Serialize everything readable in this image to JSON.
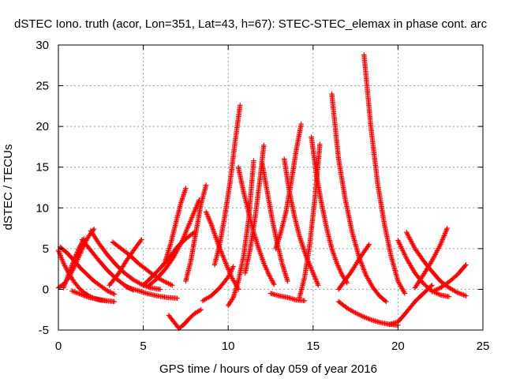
{
  "chart_data": {
    "type": "scatter",
    "title": "dSTEC Iono. truth (acor, Lon=351, Lat=43, h=67): STEC-STEC_elemax in phase cont. arc",
    "xlabel": "GPS time / hours of day 059 of year 2016",
    "ylabel": "dSTEC  / TECUs",
    "xlim": [
      0,
      25
    ],
    "ylim": [
      -5,
      30
    ],
    "xticks": [
      0,
      5,
      10,
      15,
      20,
      25
    ],
    "yticks": [
      -5,
      0,
      5,
      10,
      15,
      20,
      25,
      30
    ],
    "grid": true,
    "marker": "+",
    "color": "#ff0000",
    "series": [
      {
        "x": [
          0.0,
          0.3,
          0.6,
          0.9,
          1.2,
          1.5,
          1.8,
          2.1,
          2.4,
          2.8
        ],
        "y": [
          4.8,
          3.2,
          2.0,
          1.0,
          0.2,
          -0.4,
          -0.8,
          -1.1,
          -1.3,
          -1.4
        ]
      },
      {
        "x": [
          0.0,
          0.3,
          0.6,
          0.9,
          1.2,
          1.5,
          1.8,
          2.1
        ],
        "y": [
          0.2,
          0.6,
          1.4,
          2.6,
          4.0,
          5.4,
          6.6,
          7.4
        ]
      },
      {
        "x": [
          0.1,
          0.5,
          0.9,
          1.3,
          1.7,
          2.1,
          2.5,
          2.9,
          3.3
        ],
        "y": [
          5.2,
          4.5,
          3.6,
          2.6,
          1.8,
          1.0,
          0.4,
          -0.2,
          -0.6
        ]
      },
      {
        "x": [
          0.3,
          0.6,
          0.9,
          1.2,
          1.5
        ],
        "y": [
          0.2,
          1.8,
          3.5,
          5.0,
          6.2
        ]
      },
      {
        "x": [
          0.8,
          1.3,
          1.8,
          2.3,
          2.8,
          3.3
        ],
        "y": [
          -0.2,
          -0.6,
          -1.0,
          -1.2,
          -1.4,
          -1.5
        ]
      },
      {
        "x": [
          1.4,
          1.9,
          2.4,
          2.9,
          3.4,
          3.9,
          4.4
        ],
        "y": [
          6.1,
          4.8,
          3.5,
          2.3,
          1.3,
          0.5,
          -0.1
        ]
      },
      {
        "x": [
          1.9,
          2.4,
          2.9,
          3.4,
          3.9,
          4.4,
          4.9,
          5.4,
          6.0
        ],
        "y": [
          7.2,
          5.6,
          4.2,
          3.0,
          2.0,
          1.2,
          0.6,
          0.2,
          0.0
        ]
      },
      {
        "x": [
          3.2,
          3.7,
          4.2,
          4.7,
          5.2,
          5.7,
          6.2,
          6.7
        ],
        "y": [
          5.8,
          5.0,
          4.2,
          3.2,
          2.4,
          1.6,
          1.0,
          0.5
        ]
      },
      {
        "x": [
          3.0,
          3.5,
          4.0,
          4.5,
          4.9
        ],
        "y": [
          0.5,
          1.8,
          3.5,
          5.0,
          6.1
        ]
      },
      {
        "x": [
          5.0,
          5.5,
          6.0,
          6.5,
          7.0,
          7.5,
          8.0
        ],
        "y": [
          0.5,
          1.5,
          2.6,
          3.8,
          5.2,
          6.2,
          7.0
        ]
      },
      {
        "x": [
          4.0,
          4.6,
          5.2,
          5.8,
          6.4,
          7.0
        ],
        "y": [
          0.3,
          -0.1,
          -0.5,
          -0.8,
          -1.0,
          -1.1
        ]
      },
      {
        "x": [
          5.3,
          5.8,
          6.3,
          6.8,
          7.3,
          7.8,
          8.3
        ],
        "y": [
          0.4,
          1.3,
          2.5,
          4.0,
          6.0,
          8.5,
          11.0
        ]
      },
      {
        "x": [
          6.3,
          6.6,
          6.9,
          7.2,
          7.5
        ],
        "y": [
          3.5,
          5.5,
          8.0,
          10.5,
          12.4
        ]
      },
      {
        "x": [
          6.5,
          6.8,
          7.1,
          7.4,
          7.7,
          8.0,
          8.4
        ],
        "y": [
          -3.2,
          -4.0,
          -4.8,
          -4.3,
          -3.6,
          -3.0,
          -2.5
        ]
      },
      {
        "x": [
          7.5,
          7.8,
          8.1,
          8.4,
          8.7
        ],
        "y": [
          1.0,
          3.5,
          7.0,
          10.5,
          12.8
        ]
      },
      {
        "x": [
          8.5,
          9.0,
          9.5,
          10.0,
          10.3
        ],
        "y": [
          -1.4,
          -0.8,
          0.2,
          1.5,
          2.8
        ]
      },
      {
        "x": [
          8.7,
          9.0,
          9.4,
          9.8,
          10.2,
          10.6
        ],
        "y": [
          9.5,
          8.0,
          5.6,
          3.5,
          1.5,
          0.0
        ]
      },
      {
        "x": [
          9.2,
          9.5,
          9.8,
          10.1,
          10.4,
          10.7
        ],
        "y": [
          3.0,
          5.5,
          9.0,
          13.0,
          18.0,
          22.6
        ]
      },
      {
        "x": [
          10.0,
          10.3,
          10.6,
          10.9,
          11.2,
          11.5
        ],
        "y": [
          -2.0,
          -1.0,
          1.0,
          4.0,
          8.5,
          15.8
        ]
      },
      {
        "x": [
          10.6,
          10.9,
          11.2,
          11.5,
          11.8,
          12.1,
          12.4,
          12.7
        ],
        "y": [
          15.0,
          12.0,
          9.5,
          7.0,
          5.0,
          3.2,
          1.8,
          0.6
        ]
      },
      {
        "x": [
          11.0,
          11.3,
          11.6,
          11.9,
          12.1
        ],
        "y": [
          2.0,
          5.0,
          9.0,
          14.0,
          17.7
        ]
      },
      {
        "x": [
          12.0,
          12.3,
          12.6,
          12.9,
          13.2,
          13.5
        ],
        "y": [
          15.5,
          12.0,
          8.5,
          5.5,
          3.0,
          1.0
        ]
      },
      {
        "x": [
          12.5,
          13.0,
          13.5,
          14.0,
          14.5
        ],
        "y": [
          -0.5,
          -0.8,
          -1.0,
          -1.3,
          -1.4
        ]
      },
      {
        "x": [
          12.8,
          13.1,
          13.4,
          13.7,
          14.0,
          14.3
        ],
        "y": [
          5.0,
          7.0,
          9.5,
          13.0,
          17.0,
          20.3
        ]
      },
      {
        "x": [
          13.3,
          13.6,
          13.9,
          14.2,
          14.6,
          15.0,
          15.3
        ],
        "y": [
          16.0,
          12.0,
          9.0,
          6.5,
          4.0,
          2.0,
          0.5
        ]
      },
      {
        "x": [
          14.2,
          14.5,
          14.8,
          15.1,
          15.4
        ],
        "y": [
          -1.0,
          1.5,
          5.5,
          11.0,
          17.8
        ]
      },
      {
        "x": [
          14.9,
          15.2,
          15.5,
          15.8,
          16.1,
          16.4,
          16.7,
          17.0
        ],
        "y": [
          18.7,
          14.0,
          10.5,
          7.5,
          5.0,
          3.2,
          1.8,
          0.8
        ]
      },
      {
        "x": [
          16.1,
          16.5,
          16.9,
          17.3,
          17.7,
          18.1,
          18.5,
          18.9,
          19.3
        ],
        "y": [
          24.0,
          16.0,
          11.0,
          7.0,
          4.0,
          1.8,
          0.3,
          -0.8,
          -1.5
        ]
      },
      {
        "x": [
          16.5,
          17.0,
          17.5,
          18.0,
          18.5,
          19.0,
          19.5,
          20.0
        ],
        "y": [
          -1.5,
          -2.3,
          -2.9,
          -3.4,
          -3.8,
          -4.1,
          -4.3,
          -4.4
        ]
      },
      {
        "x": [
          18.0,
          18.4,
          18.8,
          19.2,
          19.6,
          20.0,
          20.4
        ],
        "y": [
          28.8,
          20.0,
          13.0,
          8.0,
          4.0,
          1.0,
          -0.5
        ]
      },
      {
        "x": [
          19.5,
          20.0,
          20.5,
          21.0,
          21.5,
          22.0
        ],
        "y": [
          -4.3,
          -4.0,
          -2.8,
          -1.5,
          -0.5,
          0.5
        ]
      },
      {
        "x": [
          20.0,
          20.5,
          21.0,
          21.5,
          22.0,
          22.5,
          23.0
        ],
        "y": [
          6.0,
          3.8,
          2.0,
          0.7,
          -0.2,
          -0.7,
          -0.9
        ]
      },
      {
        "x": [
          20.5,
          21.0,
          21.5,
          22.0,
          22.5,
          23.0,
          23.5,
          24.0
        ],
        "y": [
          7.0,
          5.0,
          3.5,
          2.2,
          1.0,
          0.2,
          -0.4,
          -0.8
        ]
      },
      {
        "x": [
          21.0,
          21.5,
          22.0,
          22.5,
          22.9
        ],
        "y": [
          0.2,
          1.8,
          3.5,
          5.5,
          7.5
        ]
      },
      {
        "x": [
          22.0,
          22.5,
          23.0,
          23.5,
          24.0
        ],
        "y": [
          -0.3,
          0.2,
          0.9,
          1.8,
          3.0
        ]
      },
      {
        "x": [
          16.5,
          17.2,
          17.8,
          18.3
        ],
        "y": [
          0.0,
          2.0,
          4.0,
          5.5
        ]
      }
    ]
  }
}
